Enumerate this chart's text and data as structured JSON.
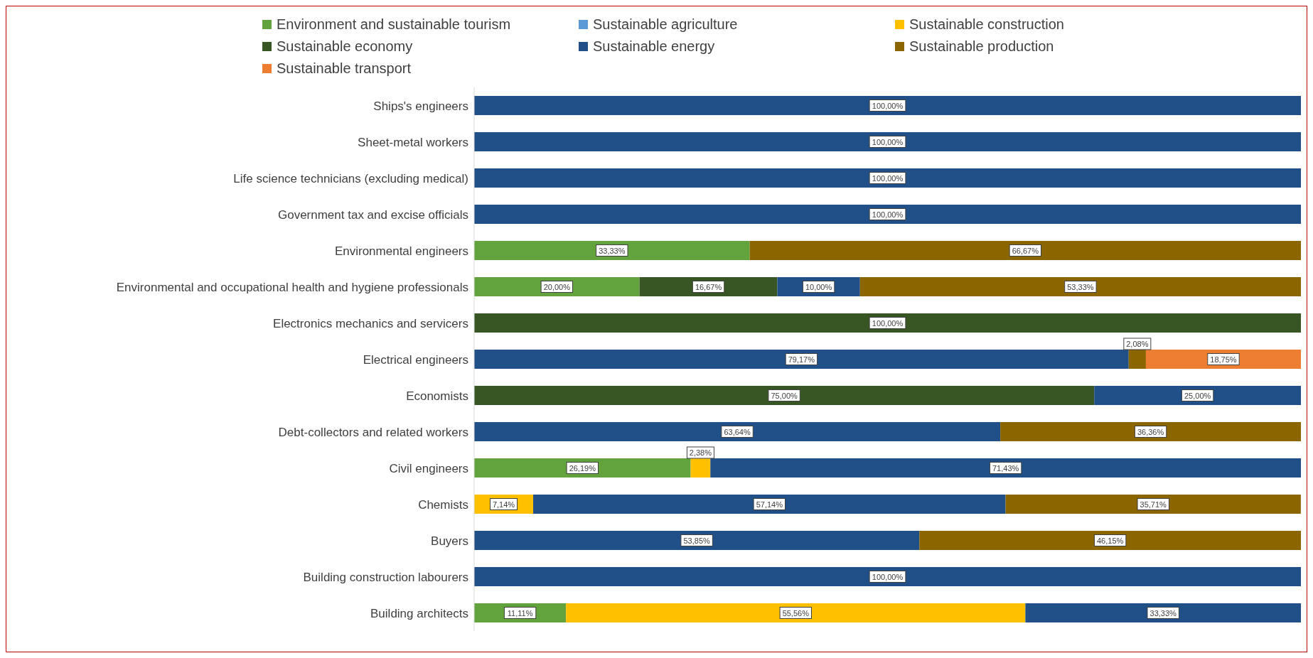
{
  "chart_data": {
    "type": "bar",
    "orientation": "horizontal",
    "stacked": true,
    "legend": "top",
    "grid": false,
    "tick_labels": "y",
    "xlim": [
      0,
      100
    ],
    "categories": [
      "Ships's engineers",
      "Sheet-metal workers",
      "Life science technicians (excluding medical)",
      "Government tax and excise officials",
      "Environmental engineers",
      "Environmental and occupational health and hygiene professionals",
      "Electronics mechanics and servicers",
      "Electrical engineers",
      "Economists",
      "Debt-collectors and related workers",
      "Civil engineers",
      "Chemists",
      "Buyers",
      "Building construction labourers",
      "Building architects"
    ],
    "series": [
      {
        "name": "Environment and sustainable tourism",
        "color": "#63a33d",
        "values": [
          null,
          null,
          null,
          null,
          33.33,
          20,
          null,
          null,
          null,
          null,
          26.19,
          null,
          null,
          null,
          11.11
        ],
        "value_labels": [
          null,
          null,
          null,
          null,
          "33,33%",
          "20,00%",
          null,
          null,
          null,
          null,
          "26,19%",
          null,
          null,
          null,
          "11,11%"
        ]
      },
      {
        "name": "Sustainable agriculture",
        "color": "#5b9bd5",
        "values": [
          null,
          null,
          null,
          null,
          null,
          null,
          null,
          null,
          null,
          null,
          null,
          null,
          null,
          null,
          null
        ],
        "value_labels": [
          null,
          null,
          null,
          null,
          null,
          null,
          null,
          null,
          null,
          null,
          null,
          null,
          null,
          null,
          null
        ]
      },
      {
        "name": "Sustainable construction",
        "color": "#ffc000",
        "values": [
          null,
          null,
          null,
          null,
          null,
          null,
          null,
          null,
          null,
          null,
          2.38,
          7.14,
          null,
          null,
          55.56
        ],
        "value_labels": [
          null,
          null,
          null,
          null,
          null,
          null,
          null,
          null,
          null,
          null,
          "2,38%",
          "7,14%",
          null,
          null,
          "55,56%"
        ]
      },
      {
        "name": "Sustainable economy",
        "color": "#375623",
        "values": [
          null,
          null,
          null,
          null,
          null,
          16.67,
          100,
          null,
          75,
          null,
          null,
          null,
          null,
          null,
          null
        ],
        "value_labels": [
          null,
          null,
          null,
          null,
          null,
          "16,67%",
          "100,00%",
          null,
          "75,00%",
          null,
          null,
          null,
          null,
          null,
          null
        ]
      },
      {
        "name": "Sustainable energy",
        "color": "#215088",
        "values": [
          100,
          100,
          100,
          100,
          null,
          10,
          null,
          79.17,
          25,
          63.64,
          71.43,
          57.14,
          53.85,
          100,
          33.33
        ],
        "value_labels": [
          "100,00%",
          "100,00%",
          "100,00%",
          "100,00%",
          null,
          "10,00%",
          null,
          "79,17%",
          "25,00%",
          "63,64%",
          "71,43%",
          "57,14%",
          "53,85%",
          "100,00%",
          "33,33%"
        ]
      },
      {
        "name": "Sustainable production",
        "color": "#8b6500",
        "values": [
          null,
          null,
          null,
          null,
          66.67,
          53.33,
          null,
          2.08,
          null,
          36.36,
          null,
          35.71,
          46.15,
          null,
          null
        ],
        "value_labels": [
          null,
          null,
          null,
          null,
          "66,67%",
          "53,33%",
          null,
          "2,08%",
          null,
          "36,36%",
          null,
          "35,71%",
          "46,15%",
          null,
          null
        ]
      },
      {
        "name": "Sustainable transport",
        "color": "#ed7d31",
        "values": [
          null,
          null,
          null,
          null,
          null,
          null,
          null,
          18.75,
          null,
          null,
          null,
          null,
          null,
          null,
          null
        ],
        "value_labels": [
          null,
          null,
          null,
          null,
          null,
          null,
          null,
          "18,75%",
          null,
          null,
          null,
          null,
          null,
          null,
          null
        ]
      }
    ]
  }
}
